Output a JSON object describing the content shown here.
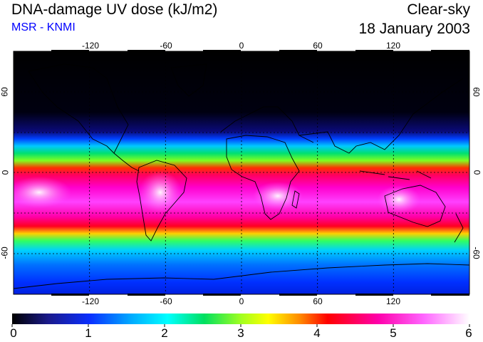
{
  "header": {
    "title": "DNA-damage UV dose (kJ/m2)",
    "source": "MSR - KNMI",
    "product": "Clear-sky",
    "date": "18 January 2003"
  },
  "map": {
    "lon_ticks_top": [
      "-120",
      "-60",
      "0",
      "60",
      "120"
    ],
    "lon_ticks_bottom": [
      "-120",
      "-60",
      "0",
      "60",
      "120"
    ],
    "lat_ticks_left": [
      "60",
      "0",
      "-60"
    ],
    "lat_ticks_right": [
      "60",
      "0",
      "-60"
    ],
    "lon_range": [
      -180,
      180
    ],
    "lat_range": [
      -90,
      90
    ]
  },
  "colorbar": {
    "ticks": [
      "0",
      "1",
      "2",
      "3",
      "4",
      "5",
      "6"
    ],
    "range": [
      0,
      6
    ],
    "colors": [
      "#000000",
      "#1a1a8c",
      "#0a2fff",
      "#00aaff",
      "#00ffff",
      "#00e060",
      "#a0ff20",
      "#ffff00",
      "#ff8800",
      "#ff0000",
      "#ff00aa",
      "#ff66ff",
      "#ffffff"
    ]
  }
}
